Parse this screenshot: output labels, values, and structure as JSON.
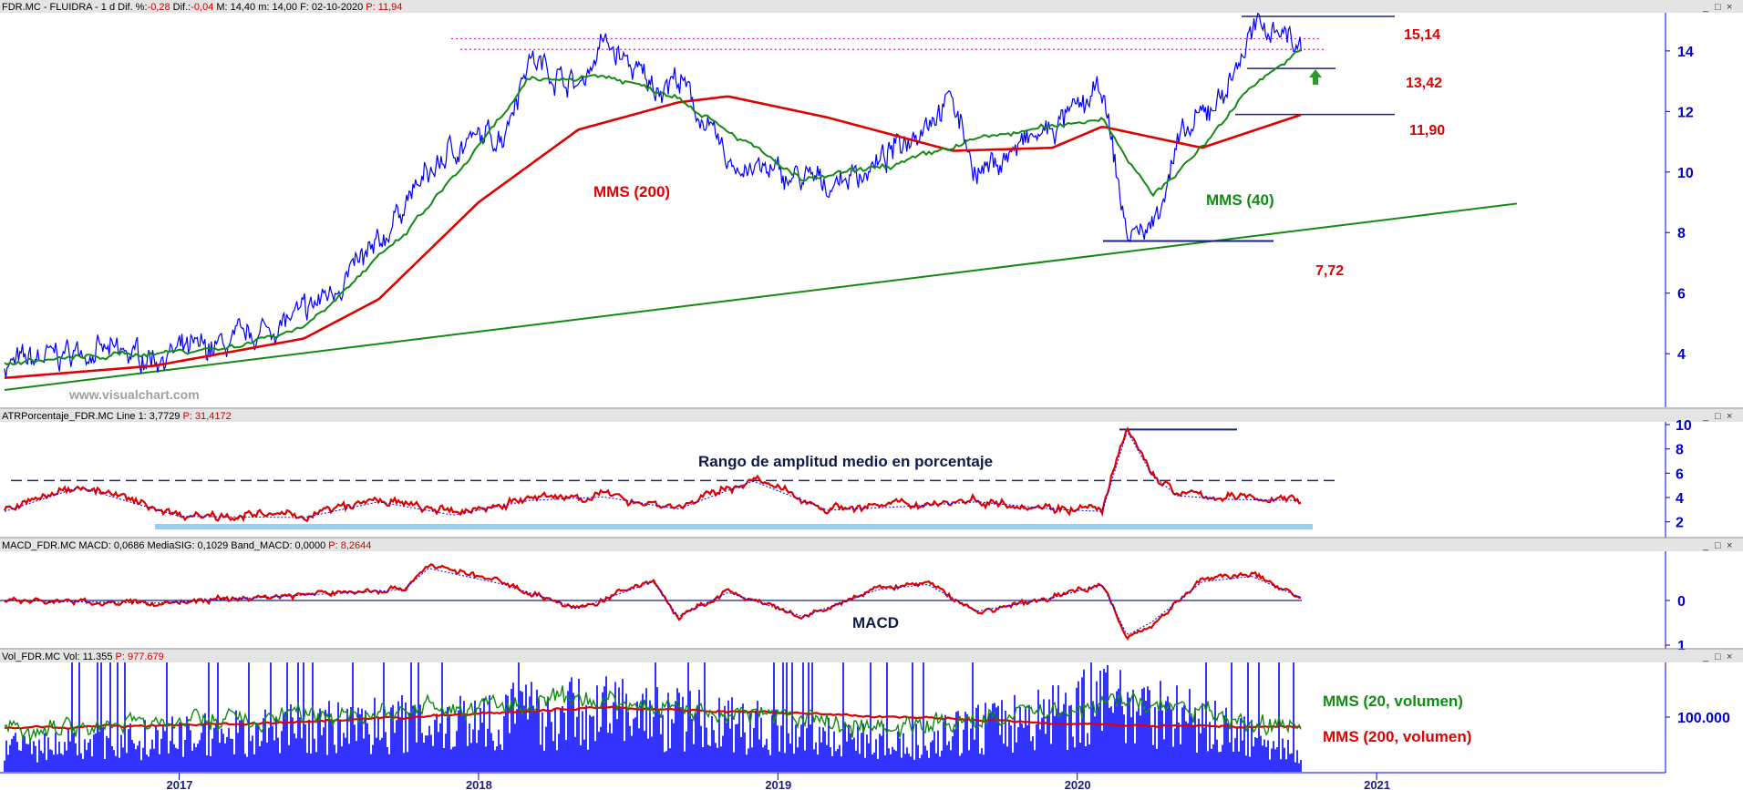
{
  "colors": {
    "price": "#0000ff",
    "mms200": "#e00000",
    "mms40": "#138a13",
    "trendline": "#138a13",
    "atr": "#e00000",
    "atr_signal": "#0000ff",
    "macd": "#e00000",
    "macd_signal": "#0000ff",
    "volume": "#0000ff",
    "vol_mms20": "#138a13",
    "vol_mms200": "#e00000",
    "level_line": "#1a237e",
    "resistance": "#d020d0",
    "atr_band": "#9ccfee",
    "arrow": "#2e9a2e",
    "axis_text": "#0000cc"
  },
  "window_buttons": [
    "_",
    "□",
    "×"
  ],
  "panels": {
    "price": {
      "header": [
        {
          "text": "FDR.MC - FLUIDRA -  1 d  Dif. %:",
          "red": false
        },
        {
          "text": "-0,28",
          "red": true
        },
        {
          "text": " Dif.:",
          "red": false
        },
        {
          "text": "-0,04",
          "red": true
        },
        {
          "text": " M: 14,40  m: 14,00  F: 02-10-2020",
          "red": false
        },
        {
          "text": " P: 11,94",
          "red": true
        }
      ],
      "yticks": [
        "4",
        "6",
        "8",
        "10",
        "12",
        "14"
      ],
      "watermark": "www.visualchart.com",
      "levels": [
        {
          "value": "15,14"
        },
        {
          "value": "13,42"
        },
        {
          "value": "11,90"
        },
        {
          "value": "7,72"
        }
      ],
      "annotations": {
        "mms200": "MMS (200)",
        "mms40": "MMS (40)"
      }
    },
    "atr": {
      "header": [
        {
          "text": "ATRPorcentaje_FDR.MC  Line 1: 3,7729",
          "red": false
        },
        {
          "text": "  P: 31,4172",
          "red": true
        }
      ],
      "yticks": [
        "2",
        "4",
        "6",
        "8",
        "10"
      ],
      "annotation": "Rango de amplitud medio en porcentaje"
    },
    "macd": {
      "header": [
        {
          "text": "MACD_FDR.MC  MACD: 0,0686  MediaSIG: 0,1029  Band_MACD: 0,0000",
          "red": false
        },
        {
          "text": "  P: 8,2644",
          "red": true
        }
      ],
      "yticks": [
        "0",
        "1"
      ],
      "annotation": "MACD"
    },
    "volume": {
      "header": [
        {
          "text": "Vol_FDR.MC  Vol: 11.355",
          "red": false
        },
        {
          "text": "  P: 977.679",
          "red": true
        }
      ],
      "yticks": [
        "100.000"
      ],
      "annotations": {
        "mms20": "MMS (20, volumen)",
        "mms200": "MMS (200, volumen)"
      }
    }
  },
  "xaxis": {
    "labels": [
      "2017",
      "2018",
      "2019",
      "2020",
      "2021"
    ]
  },
  "chart_data": [
    {
      "type": "line",
      "series": [
        {
          "name": "FDR.MC",
          "x": [
            "2016-06",
            "2016-09",
            "2016-12",
            "2017-03",
            "2017-06",
            "2017-09",
            "2017-10",
            "2017-12",
            "2018-02",
            "2018-03",
            "2018-05",
            "2018-06",
            "2018-08",
            "2018-09",
            "2018-11",
            "2019-01",
            "2019-03",
            "2019-05",
            "2019-07",
            "2019-08",
            "2019-09",
            "2019-11",
            "2019-12",
            "2020-02",
            "2020-03",
            "2020-04",
            "2020-05",
            "2020-07",
            "2020-08",
            "2020-09",
            "2020-10"
          ],
          "values": [
            3.6,
            4.1,
            3.9,
            4.3,
            5.3,
            7.5,
            9.0,
            10.8,
            11.3,
            13.8,
            12.8,
            14.3,
            12.8,
            13.1,
            10.3,
            9.9,
            9.6,
            10.2,
            11.8,
            12.4,
            9.9,
            11.0,
            11.4,
            12.7,
            7.9,
            8.2,
            10.8,
            12.8,
            14.6,
            14.9,
            14.0
          ]
        },
        {
          "name": "MMS (200)",
          "x": [
            "2016-06",
            "2016-12",
            "2017-06",
            "2017-09",
            "2018-01",
            "2018-05",
            "2018-09",
            "2018-11",
            "2019-03",
            "2019-08",
            "2019-12",
            "2020-02",
            "2020-06",
            "2020-10"
          ],
          "values": [
            3.2,
            3.6,
            4.5,
            5.8,
            9.0,
            11.4,
            12.3,
            12.5,
            11.8,
            10.7,
            10.8,
            11.5,
            10.8,
            11.9
          ]
        },
        {
          "name": "MMS (40)",
          "x": [
            "2016-06",
            "2017-03",
            "2017-06",
            "2017-10",
            "2018-01",
            "2018-03",
            "2018-06",
            "2018-09",
            "2018-11",
            "2019-02",
            "2019-06",
            "2019-09",
            "2019-12",
            "2020-02",
            "2020-04",
            "2020-06",
            "2020-08",
            "2020-10"
          ],
          "values": [
            3.7,
            4.2,
            4.9,
            7.9,
            10.8,
            13.0,
            13.2,
            12.5,
            11.4,
            9.7,
            10.3,
            11.1,
            11.5,
            11.8,
            9.2,
            10.8,
            12.9,
            14.0
          ]
        }
      ],
      "trendline": {
        "x": [
          "2016-06",
          "2021-10"
        ],
        "values": [
          2.8,
          9.3
        ]
      },
      "levels": [
        15.14,
        13.42,
        11.9,
        7.72
      ],
      "resistance": [
        14.4,
        14.05
      ],
      "ylim": [
        2.5,
        15.2
      ]
    },
    {
      "type": "line",
      "series": [
        {
          "name": "ATRPorcentaje_FDR.MC",
          "x": [
            "2016-06",
            "2016-09",
            "2017-01",
            "2017-06",
            "2017-09",
            "2017-12",
            "2018-03",
            "2018-06",
            "2018-09",
            "2018-12",
            "2019-03",
            "2019-06",
            "2019-09",
            "2019-12",
            "2020-02",
            "2020-03",
            "2020-04",
            "2020-05",
            "2020-07",
            "2020-10"
          ],
          "values": [
            3.0,
            5.0,
            2.6,
            2.5,
            3.8,
            2.7,
            3.9,
            4.2,
            3.2,
            5.5,
            3.1,
            3.4,
            3.8,
            3.2,
            3.0,
            9.6,
            6.0,
            4.3,
            4.0,
            3.9
          ]
        }
      ],
      "reference": [
        5.4,
        1.6
      ],
      "peak_level": 9.6,
      "ylim": [
        1,
        10
      ]
    },
    {
      "type": "line",
      "series": [
        {
          "name": "MACD",
          "x": [
            "2016-06",
            "2016-12",
            "2017-06",
            "2017-10",
            "2017-11",
            "2018-02",
            "2018-05",
            "2018-08",
            "2018-09",
            "2018-11",
            "2019-02",
            "2019-05",
            "2019-07",
            "2019-09",
            "2019-12",
            "2020-02",
            "2020-03",
            "2020-04",
            "2020-06",
            "2020-08",
            "2020-10"
          ],
          "values": [
            0.0,
            -0.1,
            0.2,
            0.4,
            1.2,
            0.6,
            -0.3,
            0.7,
            -0.6,
            0.3,
            -0.6,
            0.4,
            0.6,
            -0.4,
            0.1,
            0.6,
            -1.3,
            -0.8,
            0.7,
            0.9,
            0.1
          ]
        }
      ],
      "ylim": [
        -1.5,
        1.5
      ]
    },
    {
      "type": "bar",
      "series": [
        {
          "name": "Vol_FDR.MC",
          "x": [
            "2016-06",
            "2017-06",
            "2018-06",
            "2019-06",
            "2020-03",
            "2020-10"
          ],
          "values": [
            60000,
            110000,
            160000,
            70000,
            190000,
            40000
          ]
        },
        {
          "name": "MMS (20, volumen)",
          "x": [
            "2016-06",
            "2017-06",
            "2018-06",
            "2019-06",
            "2020-03",
            "2020-10"
          ],
          "values": [
            80000,
            100000,
            130000,
            80000,
            130000,
            75000
          ]
        },
        {
          "name": "MMS (200, volumen)",
          "x": [
            "2016-06",
            "2017-06",
            "2018-06",
            "2019-06",
            "2020-03",
            "2020-10"
          ],
          "values": [
            80000,
            90000,
            118000,
            100000,
            85000,
            82000
          ]
        }
      ],
      "ylim": [
        0,
        200000
      ]
    }
  ]
}
